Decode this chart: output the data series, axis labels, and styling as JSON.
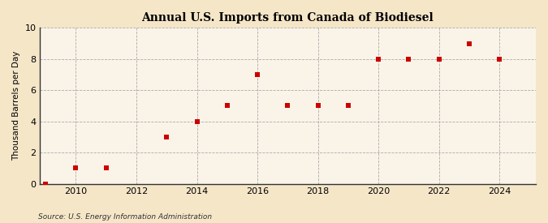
{
  "title": "Annual U.S. Imports from Canada of Biodiesel",
  "ylabel": "Thousand Barrels per Day",
  "source": "Source: U.S. Energy Information Administration",
  "background_color": "#f5e6c8",
  "plot_bg_color": "#faf4e8",
  "marker_color": "#cc0000",
  "marker_size": 22,
  "xlim": [
    2008.8,
    2025.2
  ],
  "ylim": [
    0,
    10
  ],
  "yticks": [
    0,
    2,
    4,
    6,
    8,
    10
  ],
  "xticks": [
    2010,
    2012,
    2014,
    2016,
    2018,
    2020,
    2022,
    2024
  ],
  "years": [
    2009,
    2010,
    2011,
    2013,
    2014,
    2015,
    2016,
    2017,
    2018,
    2019,
    2020,
    2021,
    2022,
    2023,
    2024
  ],
  "values": [
    0.0,
    1.0,
    1.0,
    3.0,
    4.0,
    5.0,
    7.0,
    5.0,
    5.0,
    5.0,
    8.0,
    8.0,
    8.0,
    9.0,
    8.0
  ]
}
